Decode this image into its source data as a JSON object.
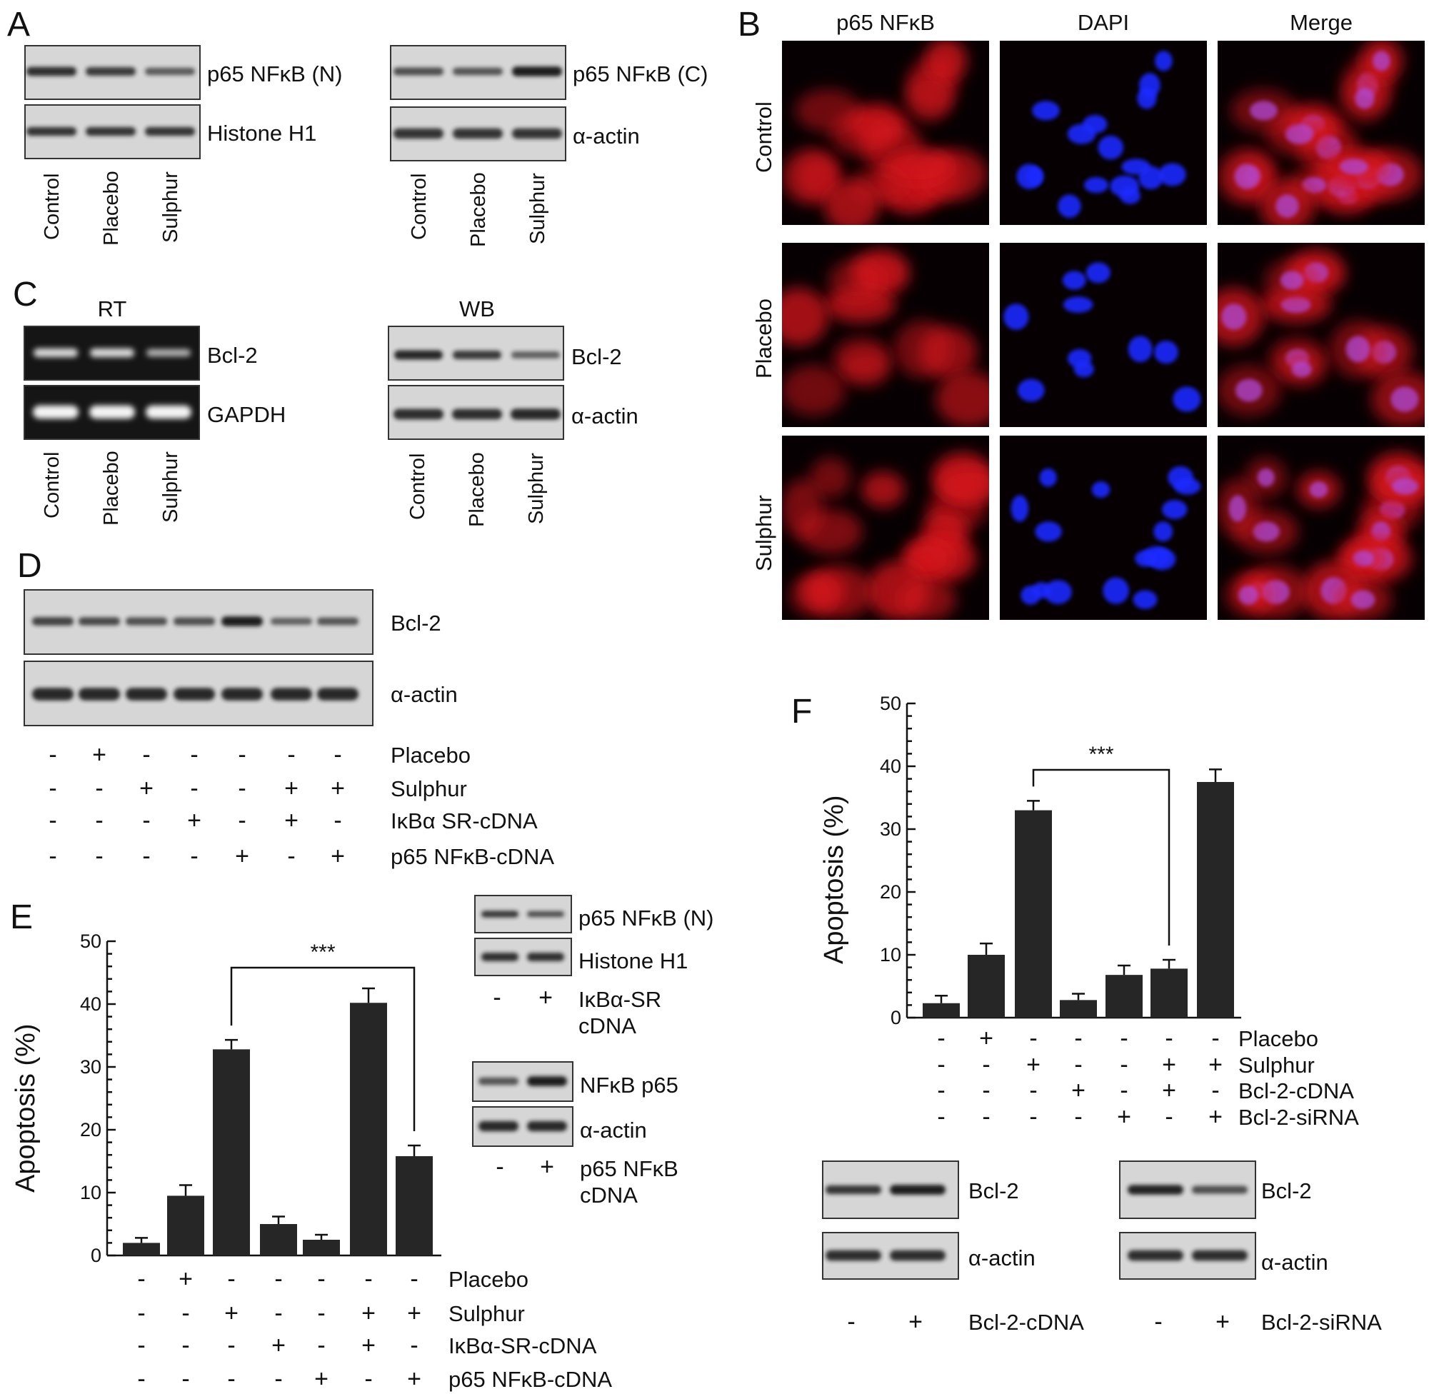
{
  "panels": {
    "A": "A",
    "B": "B",
    "C": "C",
    "D": "D",
    "E": "E",
    "F": "F"
  },
  "panel_a": {
    "left": {
      "rows": [
        "p65 NFκB (N)",
        "Histone H1"
      ],
      "lanes": [
        "Control",
        "Placebo",
        "Sulphur"
      ],
      "bands": [
        [
          0.85,
          0.75,
          0.5
        ],
        [
          0.8,
          0.8,
          0.8
        ]
      ]
    },
    "right": {
      "rows": [
        "p65 NFκB (C)",
        "α-actin"
      ],
      "lanes": [
        "Control",
        "Placebo",
        "Sulphur"
      ],
      "bands": [
        [
          0.6,
          0.55,
          1.0
        ],
        [
          0.8,
          0.8,
          0.8
        ]
      ]
    }
  },
  "panel_b": {
    "columns": [
      "p65 NFκB",
      "DAPI",
      "Merge"
    ],
    "rows": [
      "Control",
      "Placebo",
      "Sulphur"
    ]
  },
  "panel_c": {
    "rt": {
      "title": "RT",
      "rows": [
        "Bcl-2",
        "GAPDH"
      ],
      "lanes": [
        "Control",
        "Placebo",
        "Sulphur"
      ],
      "bands": [
        [
          0.8,
          0.8,
          0.5
        ],
        [
          1.0,
          1.0,
          1.0
        ]
      ]
    },
    "wb": {
      "title": "WB",
      "rows": [
        "Bcl-2",
        "α-actin"
      ],
      "lanes": [
        "Control",
        "Placebo",
        "Sulphur"
      ],
      "bands": [
        [
          0.9,
          0.75,
          0.45
        ],
        [
          0.85,
          0.85,
          0.9
        ]
      ]
    }
  },
  "panel_d": {
    "rows": [
      "Bcl-2",
      "α-actin"
    ],
    "bands": [
      [
        0.7,
        0.65,
        0.6,
        0.6,
        1.0,
        0.45,
        0.55
      ],
      [
        0.9,
        0.9,
        0.9,
        0.9,
        0.9,
        0.9,
        0.9
      ]
    ],
    "conditions": [
      {
        "name": "Placebo",
        "signs": [
          "-",
          "+",
          "-",
          "-",
          "-",
          "-",
          "-"
        ]
      },
      {
        "name": "Sulphur",
        "signs": [
          "-",
          "-",
          "+",
          "-",
          "-",
          "+",
          "+"
        ]
      },
      {
        "name": "IκBα SR-cDNA",
        "signs": [
          "-",
          "-",
          "-",
          "+",
          "-",
          "+",
          "-"
        ]
      },
      {
        "name": "p65 NFκB-cDNA",
        "signs": [
          "-",
          "-",
          "-",
          "-",
          "+",
          "-",
          "+"
        ]
      }
    ]
  },
  "panel_e_blots": {
    "top": {
      "rows": [
        "p65 NFκB (N)",
        "Histone H1"
      ],
      "signs": [
        "-",
        "+"
      ],
      "label_lines": [
        "IκBα-SR",
        "cDNA"
      ],
      "bands": [
        [
          0.8,
          0.6
        ],
        [
          0.85,
          0.85
        ]
      ]
    },
    "bottom": {
      "rows": [
        "NFκB p65",
        "α-actin"
      ],
      "signs": [
        "-",
        "+"
      ],
      "label_lines": [
        "p65  NFκB",
        "cDNA"
      ],
      "bands": [
        [
          0.55,
          1.0
        ],
        [
          0.9,
          0.9
        ]
      ]
    }
  },
  "panel_f_blots": {
    "left": {
      "rows": [
        "Bcl-2",
        "α-actin"
      ],
      "signs": [
        "-",
        "+"
      ],
      "label": "Bcl-2-cDNA",
      "bands": [
        [
          0.8,
          1.0
        ],
        [
          0.85,
          0.85
        ]
      ]
    },
    "right": {
      "rows": [
        "Bcl-2",
        "α-actin"
      ],
      "signs": [
        "-",
        "+"
      ],
      "label": "Bcl-2-siRNA",
      "bands": [
        [
          0.95,
          0.6
        ],
        [
          0.85,
          0.85
        ]
      ]
    }
  },
  "chart_data": [
    {
      "type": "bar",
      "panel": "E",
      "ylabel": "Apoptosis (%)",
      "ylim": [
        0,
        50
      ],
      "yticks": [
        0,
        10,
        20,
        30,
        40,
        50
      ],
      "values": [
        2.0,
        9.5,
        32.8,
        5.0,
        2.5,
        40.2,
        15.8
      ],
      "errors": [
        0.8,
        1.7,
        1.5,
        1.2,
        0.8,
        2.3,
        1.7
      ],
      "significance": {
        "from": 2,
        "to": 6,
        "label": "***"
      },
      "conditions": [
        {
          "name": "Placebo",
          "signs": [
            "-",
            "+",
            "-",
            "-",
            "-",
            "-",
            "-"
          ]
        },
        {
          "name": "Sulphur",
          "signs": [
            "-",
            "-",
            "+",
            "-",
            "-",
            "+",
            "+"
          ]
        },
        {
          "name": "IκBα-SR-cDNA",
          "signs": [
            "-",
            "-",
            "-",
            "+",
            "-",
            "+",
            "-"
          ]
        },
        {
          "name": "p65  NFκB-cDNA",
          "signs": [
            "-",
            "-",
            "-",
            "-",
            "+",
            "-",
            "+"
          ]
        }
      ]
    },
    {
      "type": "bar",
      "panel": "F",
      "ylabel": "Apoptosis (%)",
      "ylim": [
        0,
        50
      ],
      "yticks": [
        0,
        10,
        20,
        30,
        40,
        50
      ],
      "values": [
        2.3,
        10.0,
        33.0,
        2.8,
        6.8,
        7.8,
        37.5
      ],
      "errors": [
        1.2,
        1.8,
        1.5,
        1.0,
        1.5,
        1.4,
        2.0
      ],
      "significance": {
        "from": 2,
        "to": 5,
        "label": "***"
      },
      "conditions": [
        {
          "name": "Placebo",
          "signs": [
            "-",
            "+",
            "-",
            "-",
            "-",
            "-",
            "-"
          ]
        },
        {
          "name": "Sulphur",
          "signs": [
            "-",
            "-",
            "+",
            "-",
            "-",
            "+",
            "+"
          ]
        },
        {
          "name": "Bcl-2-cDNA",
          "signs": [
            "-",
            "-",
            "-",
            "+",
            "-",
            "+",
            "-"
          ]
        },
        {
          "name": "Bcl-2-siRNA",
          "signs": [
            "-",
            "-",
            "-",
            "-",
            "+",
            "-",
            "+"
          ]
        }
      ]
    }
  ]
}
